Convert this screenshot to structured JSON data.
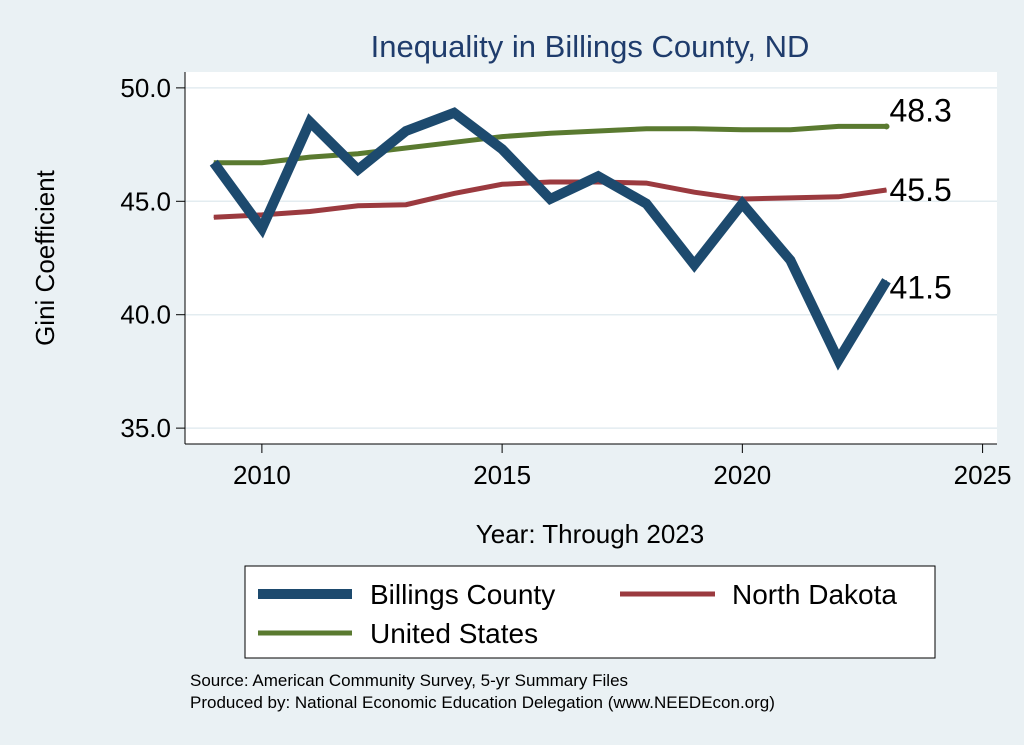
{
  "chart_data": {
    "type": "line",
    "title": "Inequality in Billings County, ND",
    "xlabel": "Year: Through 2023",
    "ylabel": "Gini Coefficient",
    "xlim": [
      2008.4,
      2025.3
    ],
    "ylim": [
      34.3,
      50.7
    ],
    "xticks": [
      2010,
      2015,
      2020,
      2025
    ],
    "yticks": [
      35.0,
      40.0,
      45.0,
      50.0
    ],
    "ytick_labels": [
      "35.0",
      "40.0",
      "45.0",
      "50.0"
    ],
    "grid": true,
    "x": [
      2009,
      2010,
      2011,
      2012,
      2013,
      2014,
      2015,
      2016,
      2017,
      2018,
      2019,
      2020,
      2021,
      2022,
      2023
    ],
    "series": [
      {
        "name": "Billings County",
        "color": "#1d4a6e",
        "values": [
          46.7,
          43.8,
          48.5,
          46.4,
          48.1,
          48.9,
          47.3,
          45.1,
          46.1,
          44.9,
          42.2,
          44.9,
          42.4,
          38.0,
          41.5
        ],
        "end_label": "41.5"
      },
      {
        "name": "North Dakota",
        "color": "#9b3a3f",
        "values": [
          44.3,
          44.4,
          44.55,
          44.8,
          44.85,
          45.35,
          45.75,
          45.85,
          45.85,
          45.8,
          45.4,
          45.1,
          45.15,
          45.2,
          45.5
        ],
        "end_label": "45.5"
      },
      {
        "name": "United States",
        "color": "#5a7a30",
        "values": [
          46.7,
          46.7,
          46.95,
          47.1,
          47.35,
          47.6,
          47.85,
          48.0,
          48.1,
          48.2,
          48.2,
          48.15,
          48.15,
          48.3,
          48.3
        ],
        "end_label": "48.3"
      }
    ],
    "legend": {
      "placement": "bottom",
      "order": [
        "Billings County",
        "North Dakota",
        "United States"
      ]
    },
    "notes": [
      "Source: American Community Survey, 5-yr Summary Files",
      "Produced by: National Economic Education Delegation (www.NEEDEcon.org)"
    ]
  }
}
